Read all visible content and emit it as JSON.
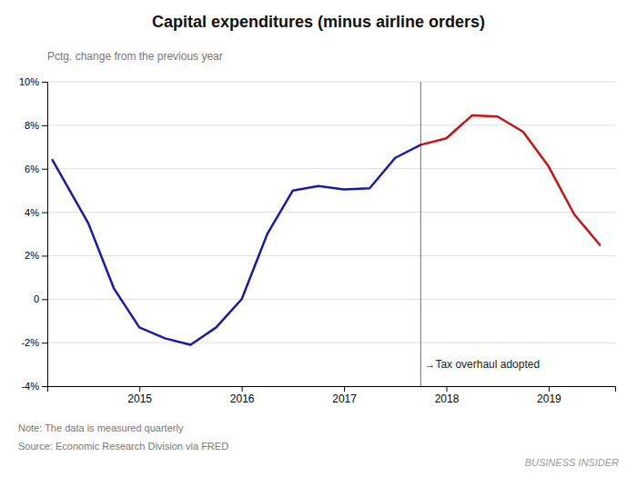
{
  "chart_data": {
    "type": "line",
    "title": "Capital expenditures (minus airline orders)",
    "subtitle": "Pctg. change from the previous year",
    "note": "Note: The data is measured quarterly",
    "source": "Source: Economic Research Division via FRED",
    "watermark": "BUSINESS INSIDER",
    "series": [
      {
        "color": "#1a1aaa",
        "x": [
          2014.15,
          2014.5,
          2014.75,
          2015.0,
          2015.25,
          2015.5,
          2015.75,
          2016.0,
          2016.25,
          2016.5,
          2016.75,
          2017.0,
          2017.25,
          2017.5,
          2017.75
        ],
        "values": [
          6.4,
          3.5,
          0.5,
          -1.3,
          -1.8,
          -2.1,
          -1.3,
          0.0,
          3.0,
          5.0,
          5.2,
          5.05,
          5.1,
          6.5,
          7.1
        ]
      },
      {
        "color": "#cc1111",
        "x": [
          2017.75,
          2018.0,
          2018.25,
          2018.5,
          2018.75,
          2019.0,
          2019.25,
          2019.5
        ],
        "values": [
          7.1,
          7.4,
          8.45,
          8.4,
          7.7,
          6.1,
          3.9,
          2.5
        ]
      }
    ],
    "vlines": [
      {
        "x": 2017.75,
        "color": "#888888"
      }
    ],
    "annotations": [
      {
        "text": "→Tax overhaul adopted",
        "x": 2017.75,
        "y": -3.0
      }
    ],
    "xlim": [
      2014.1,
      2019.65
    ],
    "xticks": [
      2015,
      2016,
      2017,
      2018,
      2019
    ],
    "ylim": [
      -4,
      10
    ],
    "yticks": [
      {
        "value": -4,
        "label": "-4%"
      },
      {
        "value": -2,
        "label": "-2%"
      },
      0,
      {
        "value": 2,
        "label": "2%"
      },
      {
        "value": 4,
        "label": "4%"
      },
      {
        "value": 6,
        "label": "6%"
      },
      {
        "value": 8,
        "label": "8%"
      },
      {
        "value": 10,
        "label": "10%"
      }
    ],
    "grid": "y"
  }
}
